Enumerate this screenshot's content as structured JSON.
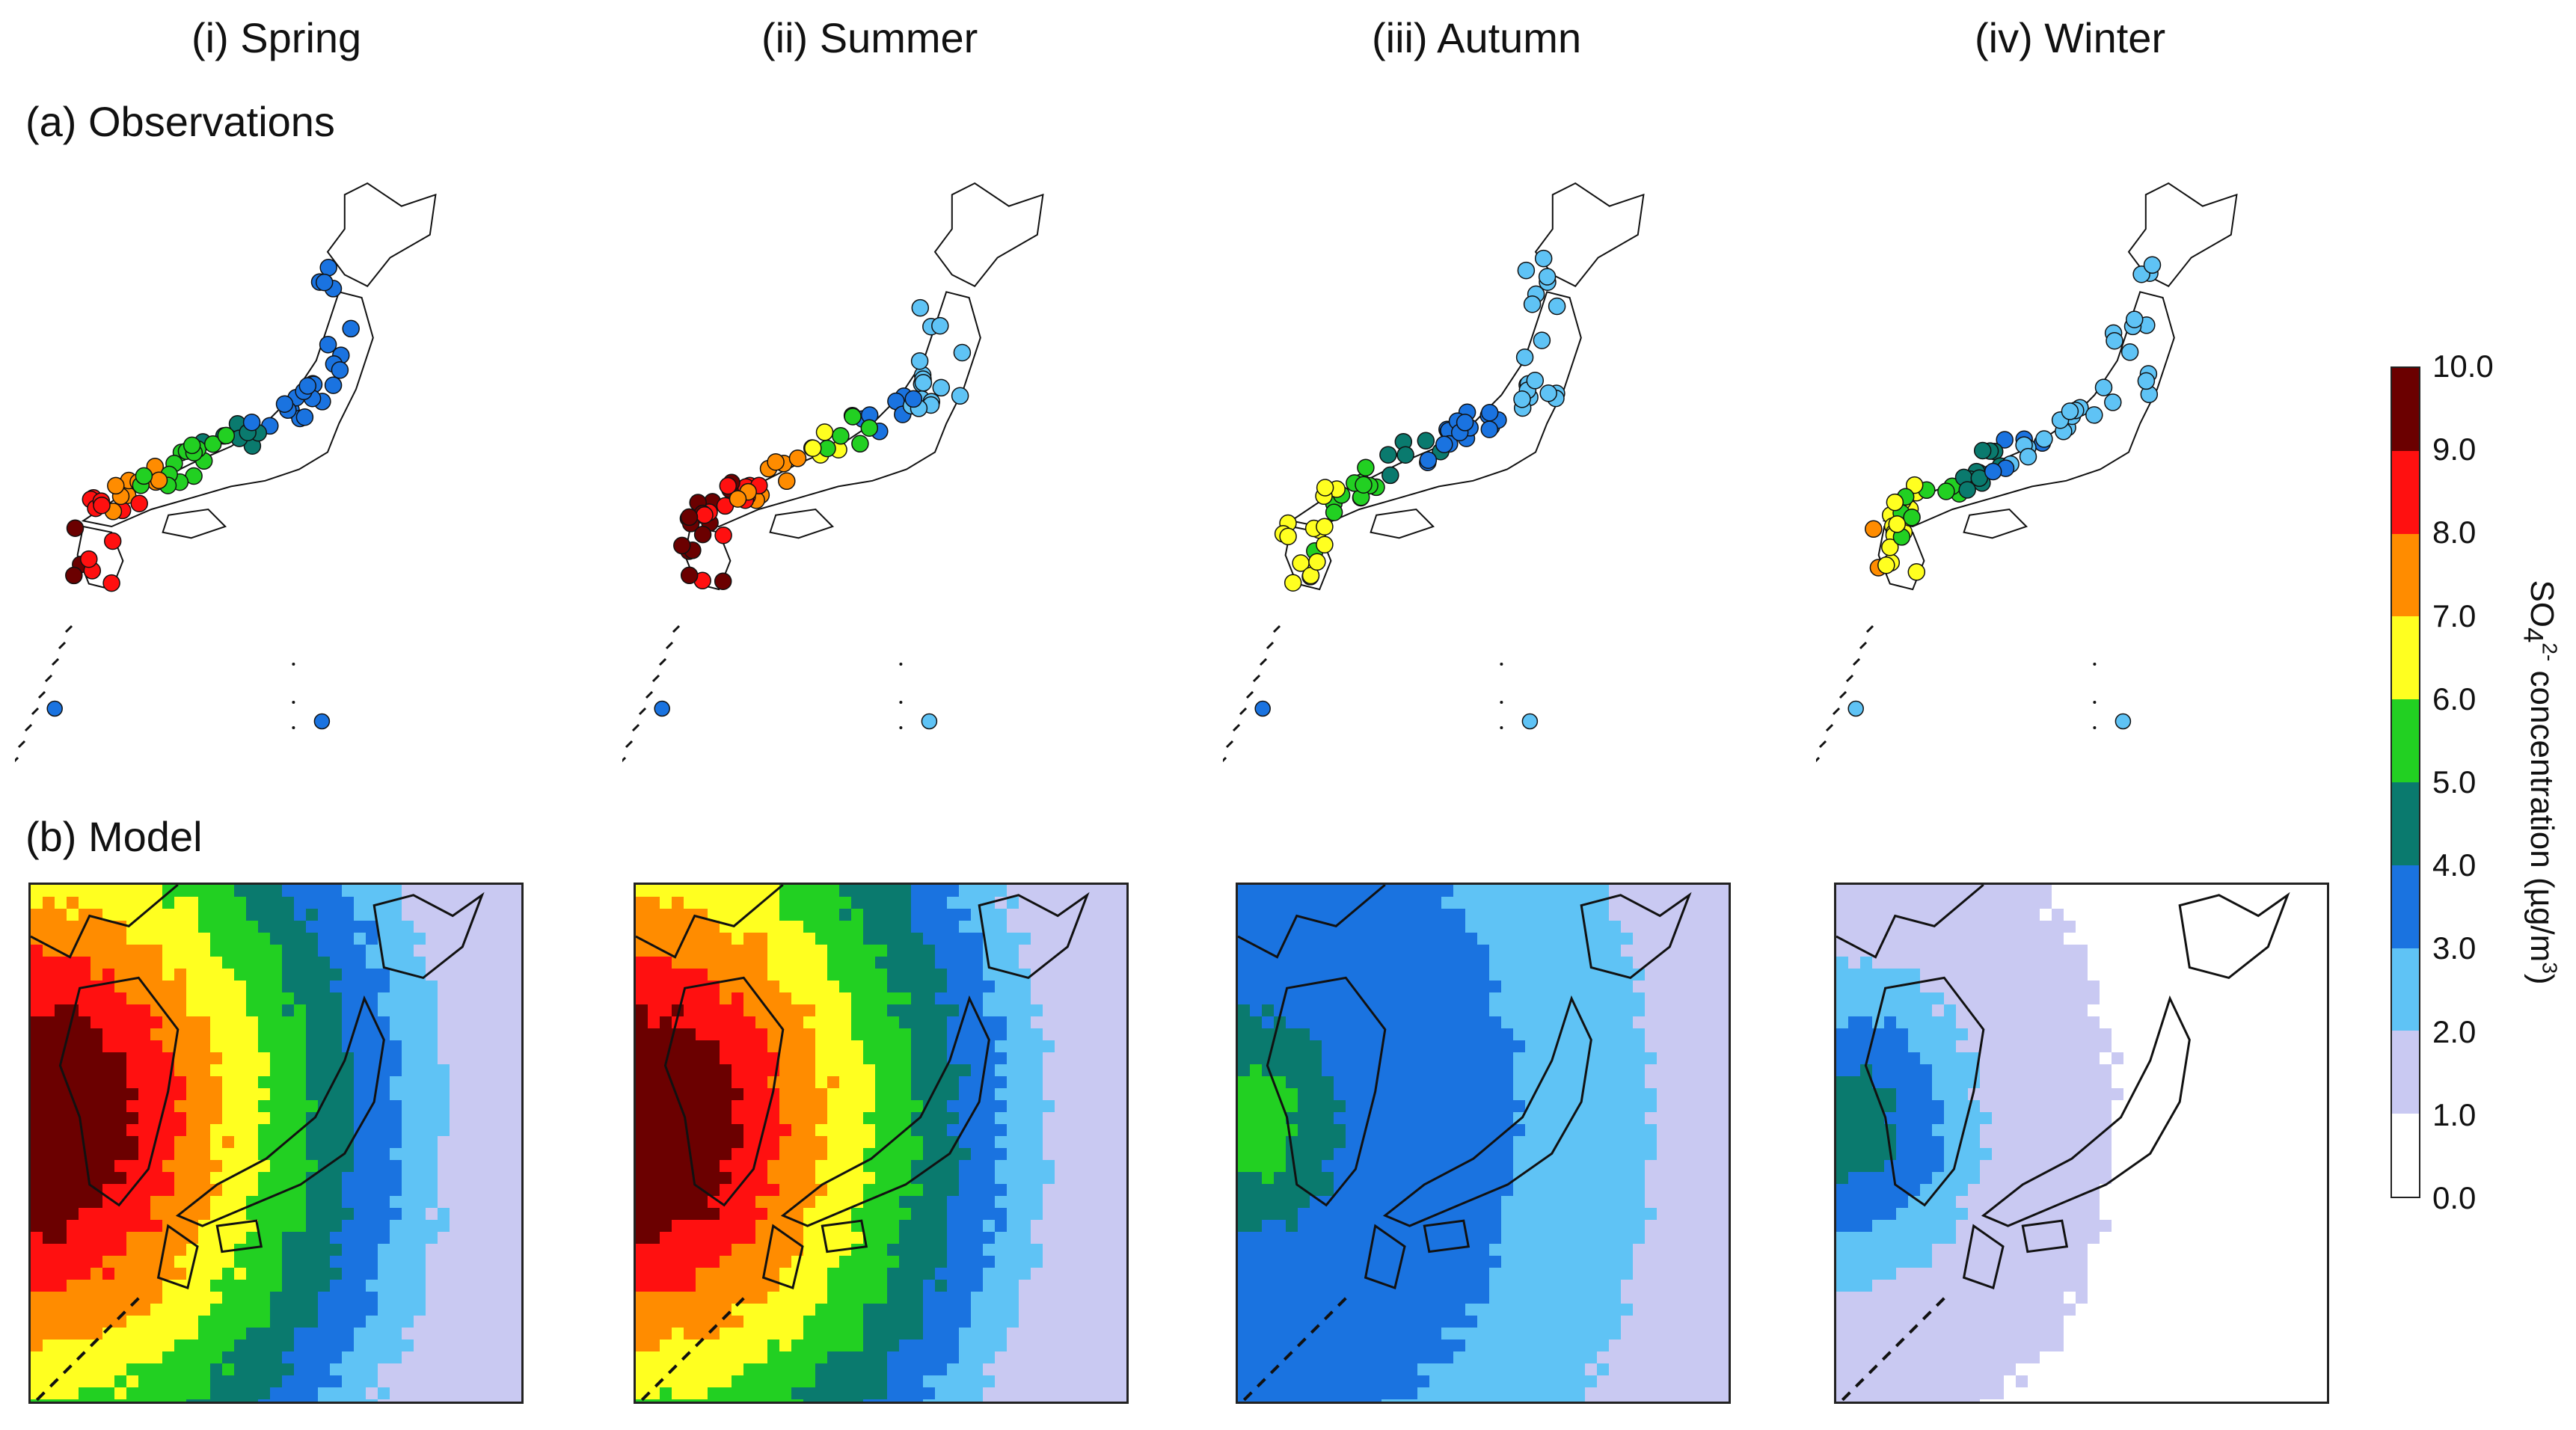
{
  "columns": [
    "(i) Spring",
    "(ii) Summer",
    "(iii) Autumn",
    "(iv) Winter"
  ],
  "rows": [
    "(a) Observations",
    "(b) Model"
  ],
  "colorbar": {
    "title_prefix": "SO",
    "title_sub": "4",
    "title_sup": "2-",
    "title_main": " concentration (µg/m",
    "title_exp": "3",
    "title_end": ")",
    "ticks": [
      "10.0",
      "9.0",
      "8.0",
      "7.0",
      "6.0",
      "5.0",
      "4.0",
      "3.0",
      "2.0",
      "1.0",
      "0.0"
    ],
    "bins": [
      {
        "range": "0.0-1.0",
        "color": "#ffffff"
      },
      {
        "range": "1.0-2.0",
        "color": "#c9c9f2"
      },
      {
        "range": "2.0-3.0",
        "color": "#5fc3f5"
      },
      {
        "range": "3.0-4.0",
        "color": "#1a73e0"
      },
      {
        "range": "4.0-5.0",
        "color": "#0a7a6e"
      },
      {
        "range": "5.0-6.0",
        "color": "#22d022"
      },
      {
        "range": "6.0-7.0",
        "color": "#ffff20"
      },
      {
        "range": "7.0-8.0",
        "color": "#ff8c00"
      },
      {
        "range": "8.0-9.0",
        "color": "#ff1010"
      },
      {
        "range": "9.0-10.0",
        "color": "#6b0000"
      }
    ]
  },
  "seasons": [
    {
      "name": "Spring",
      "obs_dominant_bins": [
        9,
        8,
        7,
        5,
        5,
        4,
        3,
        3
      ],
      "model_gradient": [
        9,
        9,
        8,
        7,
        6,
        5,
        4,
        3,
        2,
        1
      ]
    },
    {
      "name": "Summer",
      "obs_dominant_bins": [
        9,
        9,
        8,
        7,
        6,
        5,
        3,
        2
      ],
      "model_gradient": [
        9,
        9,
        8,
        7,
        6,
        5,
        4,
        3,
        2,
        1
      ]
    },
    {
      "name": "Autumn",
      "obs_dominant_bins": [
        6,
        6,
        5,
        5,
        4,
        3,
        3,
        2
      ],
      "model_gradient": [
        5,
        4,
        3,
        3,
        3,
        3,
        2,
        2,
        2,
        1
      ]
    },
    {
      "name": "Winter",
      "obs_dominant_bins": [
        7,
        6,
        5,
        4,
        3,
        2,
        2,
        2
      ],
      "model_gradient": [
        4,
        3,
        2,
        1,
        1,
        1,
        0,
        0,
        0,
        0
      ]
    }
  ]
}
